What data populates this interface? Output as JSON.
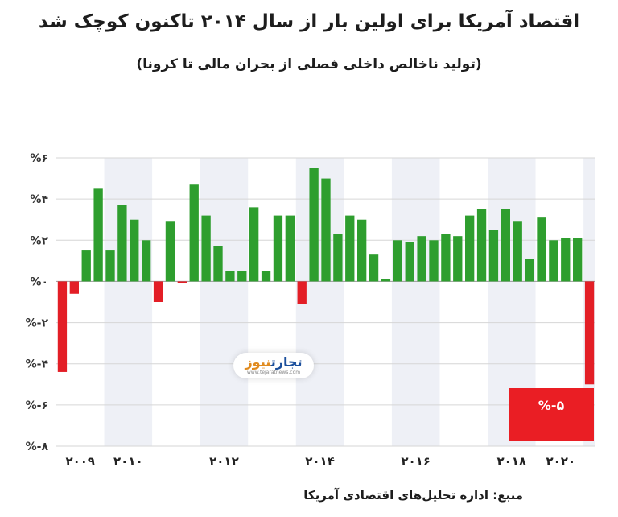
{
  "header": {
    "title": "اقتصاد آمریکا برای اولین بار از سال ۲۰۱۴ تاکنون کوچک شد",
    "subtitle": "(تولید ناخالص داخلی فصلی از بحران مالی تا کرونا)"
  },
  "source": "منبع: اداره تحلیل‌های اقتصادی آمریکا",
  "watermark": {
    "main_a": "تجارت",
    "main_b": "نیوز",
    "sub": "www.tejaratnews.com"
  },
  "annotation": "%-۵",
  "colors": {
    "positive": "#2e9e2e",
    "negative": "#e31e26",
    "band": "#eef0f6",
    "grid": "#d6d6d6"
  },
  "chart_data": {
    "type": "bar",
    "unit": "%",
    "ylim": [
      -8,
      6
    ],
    "yticks": [
      6,
      4,
      2,
      0,
      -2,
      -4,
      -6,
      -8
    ],
    "ytick_labels": [
      "%۶",
      "%۴",
      "%۲",
      "%۰",
      "%-۲",
      "%-۴",
      "%-۶",
      "%-۸"
    ],
    "grid": true,
    "legend": "none",
    "year_labels": [
      {
        "label": "۲۰۰۹",
        "index": 1.5
      },
      {
        "label": "۲۰۱۰",
        "index": 5.5
      },
      {
        "label": "۲۰۱۲",
        "index": 13.5
      },
      {
        "label": "۲۰۱۴",
        "index": 21.5
      },
      {
        "label": "۲۰۱۶",
        "index": 29.5
      },
      {
        "label": "۲۰۱۸",
        "index": 37.5
      },
      {
        "label": "۲۰۲۰",
        "index": 41.6
      }
    ],
    "bands": [
      [
        4,
        7
      ],
      [
        12,
        15
      ],
      [
        20,
        23
      ],
      [
        28,
        31
      ],
      [
        36,
        39
      ],
      [
        44,
        44
      ]
    ],
    "values": [
      -4.4,
      -0.6,
      1.5,
      4.5,
      1.5,
      3.7,
      3.0,
      2.0,
      -1.0,
      2.9,
      -0.1,
      4.7,
      3.2,
      1.7,
      0.5,
      0.5,
      3.6,
      0.5,
      3.2,
      3.2,
      -1.1,
      5.5,
      5.0,
      2.3,
      3.2,
      3.0,
      1.3,
      0.1,
      2.0,
      1.9,
      2.2,
      2.0,
      2.3,
      2.2,
      3.2,
      3.5,
      2.5,
      3.5,
      2.9,
      1.1,
      3.1,
      2.0,
      2.1,
      2.1,
      -5.0
    ]
  }
}
